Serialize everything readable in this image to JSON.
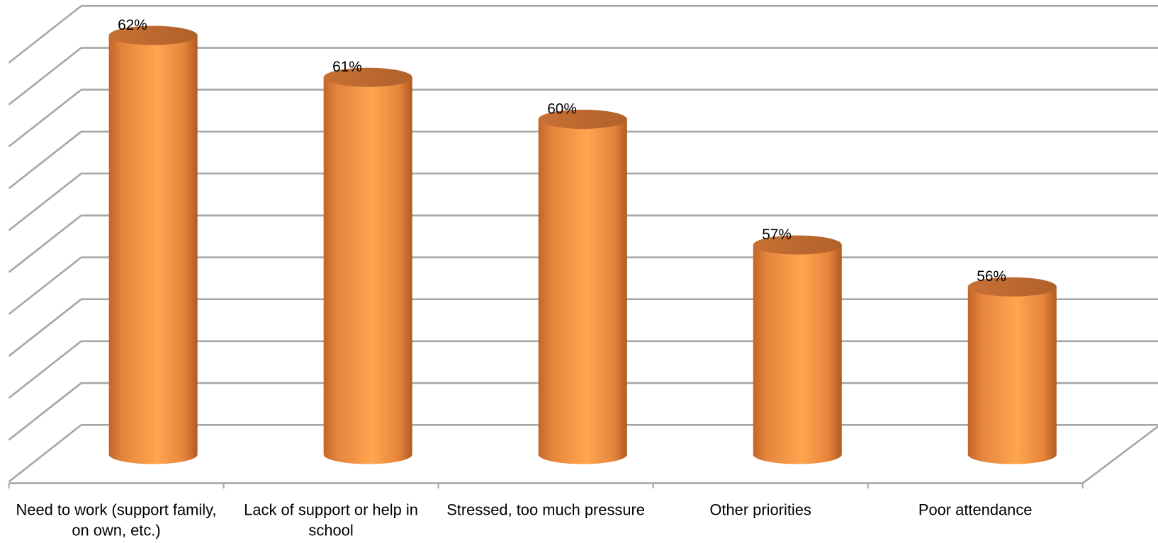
{
  "chart_data": {
    "type": "bar3d",
    "categories": [
      "Need to work (support family, on own, etc.)",
      "Lack of support or help in school",
      "Stressed, too much pressure",
      "Other priorities",
      "Poor attendance"
    ],
    "values": [
      62,
      61,
      60,
      57,
      56
    ],
    "value_labels": [
      "62%",
      "61%",
      "60%",
      "57%",
      "56%"
    ],
    "color": "#f79646",
    "ylim": [
      52,
      62
    ],
    "yticks": [
      52,
      53,
      54,
      55,
      56,
      57,
      58,
      59,
      60,
      61,
      62
    ],
    "grid": true
  }
}
